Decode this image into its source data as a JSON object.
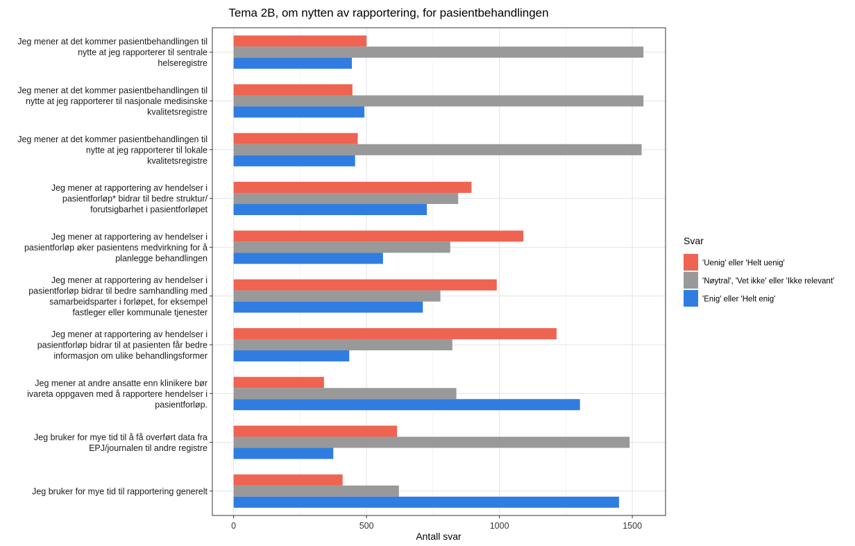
{
  "chart_data": {
    "type": "bar",
    "orientation": "horizontal",
    "title": "Tema 2B, om nytten av rapportering, for pasientbehandlingen",
    "xlabel": "Antall svar",
    "ylabel": "",
    "xlim": [
      -80,
      1625
    ],
    "x_ticks": [
      0,
      500,
      1000,
      1500
    ],
    "grid": true,
    "legend_position": "right",
    "categories": [
      [
        "Jeg mener at det kommer pasientbehandlingen til",
        "nytte at jeg rapporterer til sentrale",
        "helseregistre"
      ],
      [
        "Jeg mener at det kommer pasientbehandlingen til",
        "nytte at jeg rapporterer til nasjonale medisinske",
        "kvalitetsregistre"
      ],
      [
        "Jeg mener at det kommer pasientbehandlingen til",
        "nytte at jeg rapporterer til lokale",
        "kvalitetsregistre"
      ],
      [
        "Jeg mener at rapportering av hendelser i",
        "pasientforløp* bidrar til bedre struktur/",
        "forutsigbarhet i pasientforløpet"
      ],
      [
        "Jeg mener at rapportering av hendelser i",
        "pasientforløp øker pasientens medvirkning for å",
        "planlegge behandlingen"
      ],
      [
        "Jeg mener at rapportering av hendelser i",
        "pasientforløp bidrar til bedre samhandling med",
        "samarbeidsparter i forløpet, for eksempel",
        "fastleger eller kommunale tjenester"
      ],
      [
        "Jeg mener at rapportering av hendelser i",
        "pasientforløp bidrar til at pasienten får bedre",
        "informasjon om ulike behandlingsformer"
      ],
      [
        "Jeg mener at andre ansatte enn klinikere bør",
        "ivareta oppgaven med å rapportere hendelser i",
        "pasientforløp."
      ],
      [
        "Jeg bruker for mye tid til å få overført data fra",
        "EPJ/journalen til andre registre"
      ],
      [
        "Jeg bruker for mye tid til rapportering generelt"
      ]
    ],
    "legend_title": "Svar",
    "series": [
      {
        "name": "'Uenig' eller 'Helt uenig'",
        "color": "#EF6351",
        "values": [
          500,
          447,
          467,
          895,
          1090,
          990,
          1215,
          340,
          615,
          410
        ]
      },
      {
        "name": "'Nøytral', 'Vet ikke' eller 'Ikke relevant'",
        "color": "#999999",
        "values": [
          1542,
          1542,
          1535,
          845,
          815,
          778,
          823,
          838,
          1490,
          622
        ]
      },
      {
        "name": "'Enig' eller 'Helt enig'",
        "color": "#2F7DE1",
        "values": [
          445,
          492,
          457,
          727,
          562,
          712,
          435,
          1303,
          375,
          1450
        ]
      }
    ]
  }
}
